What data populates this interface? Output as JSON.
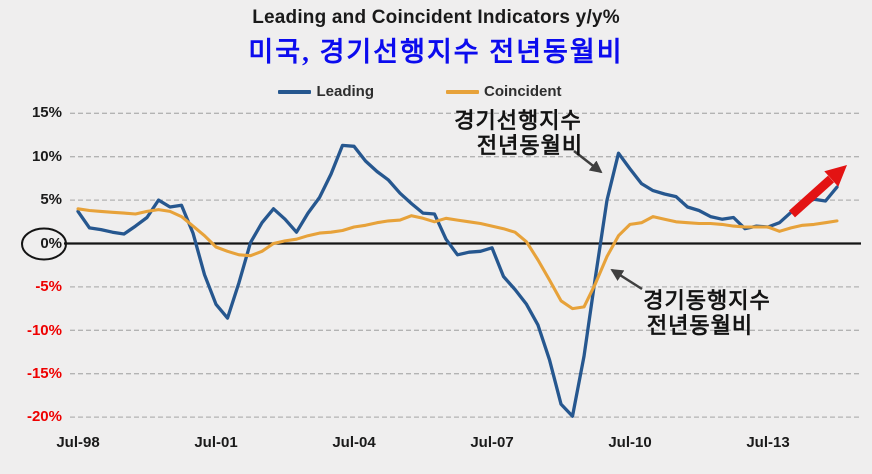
{
  "header": {
    "title": "Leading and Coincident Indicators y/y%",
    "subtitle_korean": "미국, 경기선행지수 전년동월비",
    "title_color": "#1a1a1a",
    "subtitle_color": "#0b0bee"
  },
  "legend": {
    "items": [
      {
        "label": "Leading",
        "color": "#26578f"
      },
      {
        "label": "Coincident",
        "color": "#e7a23a"
      }
    ]
  },
  "axes": {
    "y_ticks": [
      "15%",
      "10%",
      "5%",
      "0%",
      "-5%",
      "-10%",
      "-15%",
      "-20%"
    ],
    "y_positive_color": "#1a1a1a",
    "y_negative_color": "#ee0000",
    "x_ticks": [
      "Jul-98",
      "Jul-01",
      "Jul-04",
      "Jul-07",
      "Jul-10",
      "Jul-13"
    ]
  },
  "annotations": {
    "leading_note": {
      "line1": "경기선행지수",
      "line2": "전년동월비"
    },
    "coincident_note": {
      "line1": "경기동행지수",
      "line2": "전년동월비"
    },
    "circled_tick": "0%",
    "arrow_color": "#3f3f3f",
    "trend_arrow_color": "#e31313"
  },
  "chart_data": {
    "type": "line",
    "title": "Leading and Coincident Indicators y/y%",
    "y_unit": "%",
    "ylim": [
      -20,
      15
    ],
    "grid": "horizontal-dashed",
    "legend_position": "top",
    "x_step_months": 3,
    "x": [
      "1998-07",
      "1998-10",
      "1999-01",
      "1999-04",
      "1999-07",
      "1999-10",
      "2000-01",
      "2000-04",
      "2000-07",
      "2000-10",
      "2001-01",
      "2001-04",
      "2001-07",
      "2001-10",
      "2002-01",
      "2002-04",
      "2002-07",
      "2002-10",
      "2003-01",
      "2003-04",
      "2003-07",
      "2003-10",
      "2004-01",
      "2004-04",
      "2004-07",
      "2004-10",
      "2005-01",
      "2005-04",
      "2005-07",
      "2005-10",
      "2006-01",
      "2006-04",
      "2006-07",
      "2006-10",
      "2007-01",
      "2007-04",
      "2007-07",
      "2007-10",
      "2008-01",
      "2008-04",
      "2008-07",
      "2008-10",
      "2009-01",
      "2009-04",
      "2009-07",
      "2009-10",
      "2010-01",
      "2010-04",
      "2010-07",
      "2010-10",
      "2011-01",
      "2011-04",
      "2011-07",
      "2011-10",
      "2012-01",
      "2012-04",
      "2012-07",
      "2012-10",
      "2013-01",
      "2013-04",
      "2013-07",
      "2013-10",
      "2014-01",
      "2014-04",
      "2014-07",
      "2014-10",
      "2015-01"
    ],
    "series": [
      {
        "name": "Leading",
        "color": "#26578f",
        "values": [
          3.7,
          1.8,
          1.6,
          1.3,
          1.1,
          2.0,
          3.0,
          5.0,
          4.2,
          4.4,
          1.2,
          -3.6,
          -7.0,
          -8.6,
          -4.5,
          0.1,
          2.4,
          4.0,
          2.8,
          1.3,
          3.5,
          5.3,
          8.0,
          11.3,
          11.2,
          9.5,
          8.3,
          7.3,
          5.8,
          4.6,
          3.5,
          3.4,
          0.5,
          -1.3,
          -1.0,
          -0.9,
          -0.5,
          -3.8,
          -5.3,
          -7.0,
          -9.4,
          -13.4,
          -18.5,
          -19.9,
          -13.0,
          -3.8,
          5.0,
          10.4,
          8.6,
          6.9,
          6.1,
          5.7,
          5.4,
          4.2,
          3.8,
          3.1,
          2.8,
          3.0,
          1.7,
          2.0,
          1.9,
          2.4,
          3.6,
          4.5,
          5.1,
          4.9,
          6.5
        ]
      },
      {
        "name": "Coincident",
        "color": "#e7a23a",
        "values": [
          4.0,
          3.8,
          3.7,
          3.6,
          3.5,
          3.4,
          3.7,
          3.9,
          3.7,
          3.1,
          2.0,
          0.9,
          -0.4,
          -0.9,
          -1.3,
          -1.4,
          -0.9,
          0.0,
          0.3,
          0.5,
          0.9,
          1.2,
          1.3,
          1.5,
          1.9,
          2.1,
          2.4,
          2.6,
          2.7,
          3.2,
          2.9,
          2.5,
          2.9,
          2.7,
          2.5,
          2.3,
          2.0,
          1.7,
          1.3,
          0.2,
          -1.9,
          -4.2,
          -6.6,
          -7.5,
          -7.3,
          -4.6,
          -1.5,
          0.9,
          2.2,
          2.4,
          3.1,
          2.8,
          2.5,
          2.4,
          2.3,
          2.3,
          2.2,
          2.0,
          1.9,
          1.9,
          1.9,
          1.4,
          1.8,
          2.1,
          2.2,
          2.4,
          2.6
        ]
      }
    ]
  }
}
